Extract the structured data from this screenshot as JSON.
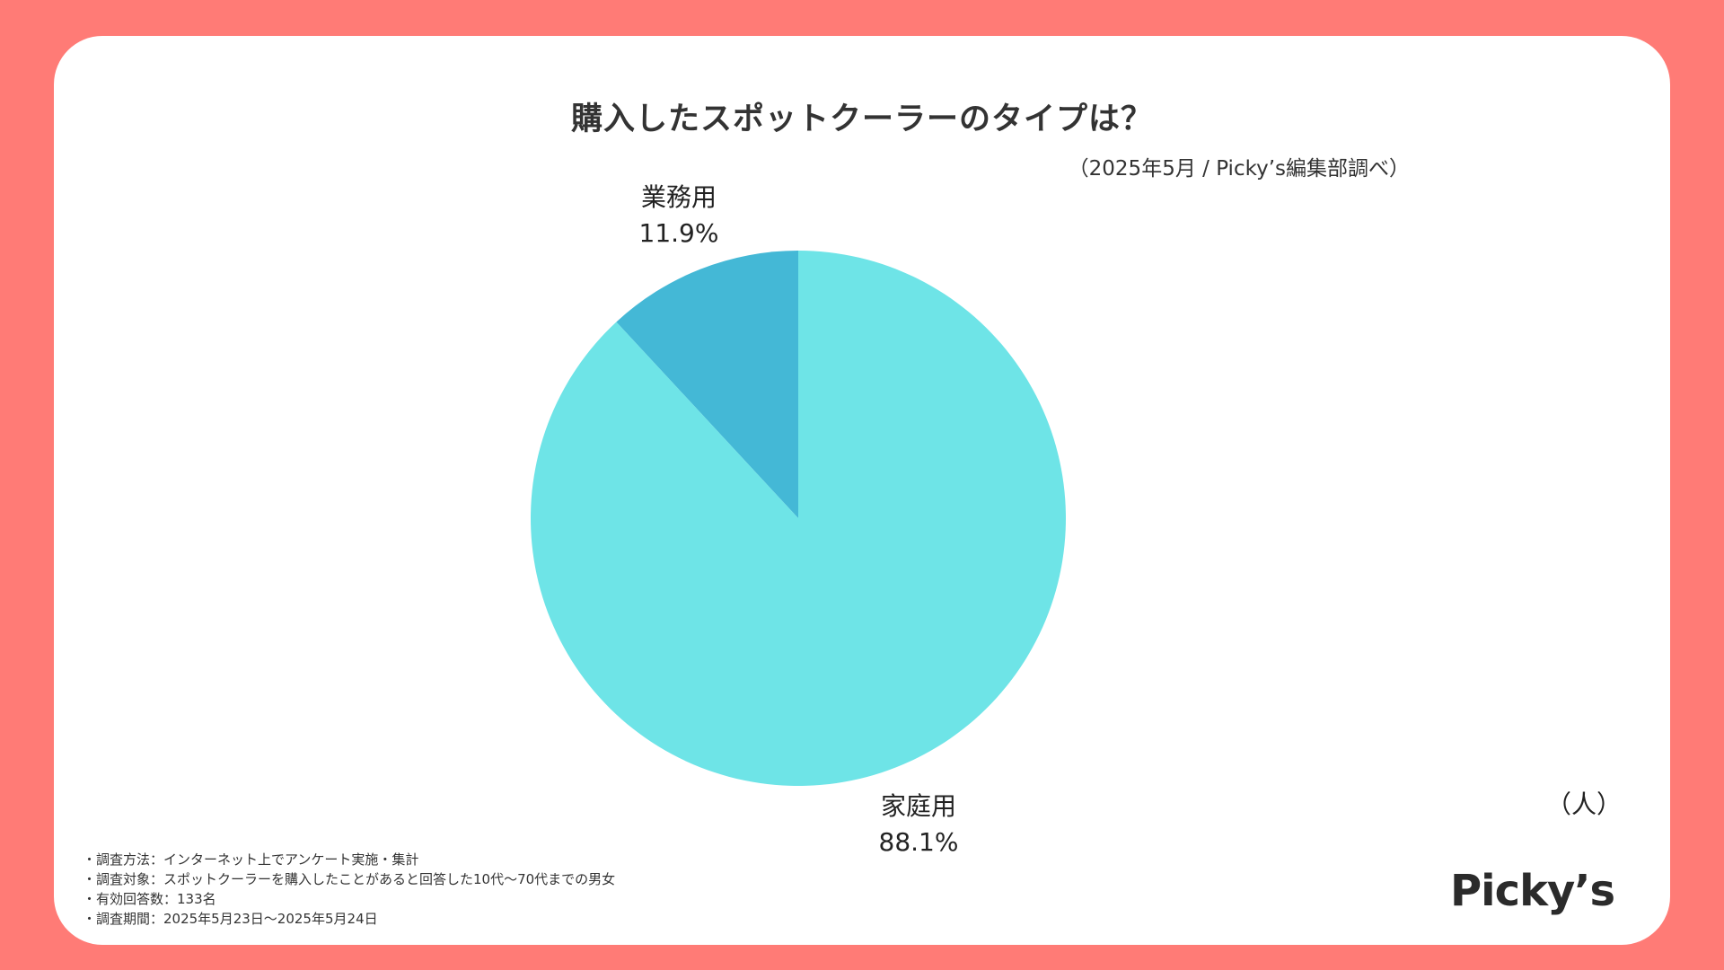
{
  "title": "購入したスポットクーラーのタイプは？",
  "source": "（2025年5月 / Picky’s編集部調べ）",
  "unit": "（人）",
  "logo": "Picky’s",
  "notes": [
    "・調査方法：インターネット上でアンケート実施・集計",
    "・調査対象：スポットクーラーを購入したことがあると回答した10代〜70代までの男女",
    "・有効回答数：133名",
    "・調査期間：2025年5月23日〜2025年5月24日"
  ],
  "colors": {
    "background": "#ff7b76",
    "card": "#ffffff",
    "business": "#44b8d6",
    "home": "#6ee4e7"
  },
  "chart_data": {
    "type": "pie",
    "slices": [
      {
        "label": "業務用",
        "value": 11.9,
        "value_label": "11.9%",
        "color": "#44b8d6"
      },
      {
        "label": "家庭用",
        "value": 88.1,
        "value_label": "88.1%",
        "color": "#6ee4e7"
      }
    ]
  }
}
